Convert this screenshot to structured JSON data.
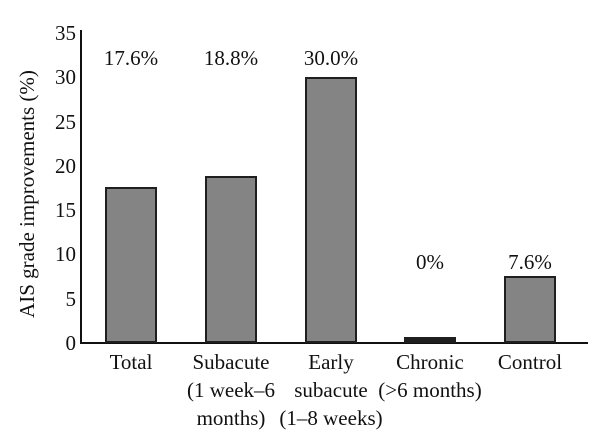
{
  "figure": {
    "background": "#ffffff",
    "bar_fill": "#848484",
    "bar_border": "#1f1f1f",
    "axis_color": "#111111",
    "text_color": "#111111"
  },
  "chart_data": {
    "type": "bar",
    "title": "",
    "xlabel": "",
    "ylabel": "AIS grade improvements (%)",
    "ylim": [
      0,
      35
    ],
    "yticks": [
      0,
      5,
      10,
      15,
      20,
      25,
      30,
      35
    ],
    "grid": false,
    "legend": null,
    "categories": [
      "Total",
      "Subacute (1 week–6 months)",
      "Early subacute (1–8 weeks)",
      "Chronic (>6 months)",
      "Control"
    ],
    "category_label_lines": [
      [
        "Total"
      ],
      [
        "Subacute",
        "(1 week–6",
        "months)"
      ],
      [
        "Early",
        "subacute",
        "(1–8 weeks)"
      ],
      [
        "Chronic",
        "(>6 months)"
      ],
      [
        "Control"
      ]
    ],
    "values": [
      17.6,
      18.8,
      30.0,
      0,
      7.6
    ],
    "value_labels": [
      "17.6%",
      "18.8%",
      "30.0%",
      "0%",
      "7.6%"
    ],
    "value_label_row": [
      "top",
      "top",
      "top",
      "low",
      "low"
    ]
  }
}
